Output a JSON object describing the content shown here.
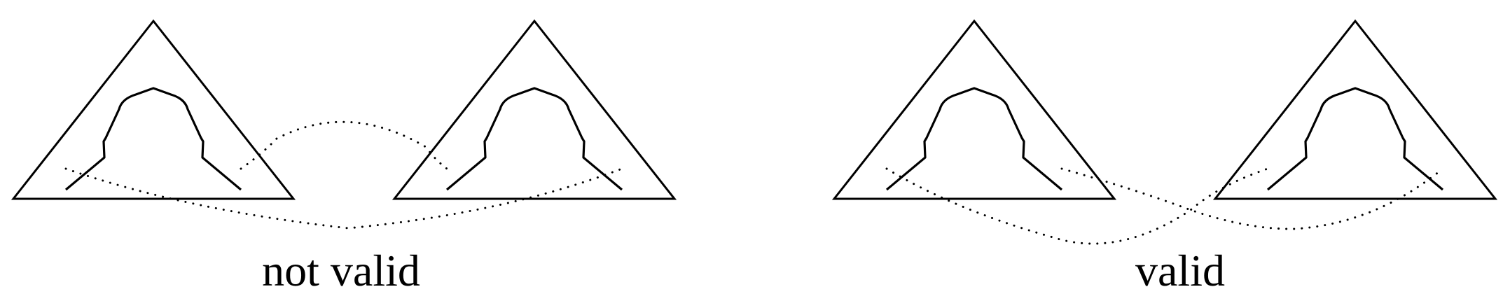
{
  "panels": [
    {
      "label": "not valid"
    },
    {
      "label": "valid"
    }
  ],
  "colors": {
    "stroke": "#000000",
    "background": "#ffffff"
  }
}
